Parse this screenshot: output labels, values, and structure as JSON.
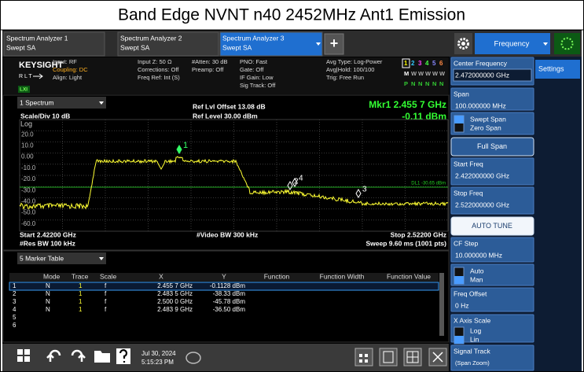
{
  "title": "Band Edge NVNT n40 2452MHz Ant1 Emission",
  "tabs": [
    {
      "name": "Spectrum Analyzer 1",
      "mode": "Swept SA"
    },
    {
      "name": "Spectrum Analyzer 2",
      "mode": "Swept SA"
    },
    {
      "name": "Spectrum Analyzer 3",
      "mode": "Swept SA"
    }
  ],
  "add_tab": "+",
  "menu": "Frequency",
  "settings_tab": "Settings",
  "status": {
    "brand": "KEYSIGHT",
    "rlt": "RLT",
    "lxi": "LXI",
    "col1": [
      "Input: RF",
      "Coupling: DC",
      "Align: Light"
    ],
    "col2": [
      "Input Z: 50 Ω",
      "Corrections: Off",
      "Freq Ref: Int (S)"
    ],
    "col3": [
      "#Atten: 30 dB",
      "Preamp: Off"
    ],
    "col4": [
      "PNO: Fast",
      "Gate: Off",
      "IF Gain: Low",
      "Sig Track: Off"
    ],
    "col5": [
      "Avg Type: Log-Power",
      "Avg|Hold: 100/100",
      "Trig: Free Run"
    ],
    "traces": [
      "1",
      "2",
      "3",
      "4",
      "5",
      "6"
    ],
    "trace_types": [
      "M",
      "W",
      "W",
      "W",
      "W",
      "W"
    ],
    "detectors": [
      "P",
      "N",
      "N",
      "N",
      "N",
      "N"
    ]
  },
  "spectrum": {
    "window": "1 Spectrum",
    "scale": "Scale/Div 10 dB",
    "scale_type": "Log",
    "ref_offset": "Ref Lvl Offset 13.08 dB",
    "ref_level": "Ref Level 30.00 dBm",
    "marker_freq": "Mkr1  2.455 7 GHz",
    "marker_level": "-0.11 dBm",
    "y_labels": [
      "20.0",
      "10.0",
      "0.00",
      "-10.0",
      "-20.0",
      "-30.0",
      "-40.0",
      "-50.0",
      "-60.0"
    ],
    "display_line": "DL1 -30.65 dBm",
    "marker_labels": [
      "1",
      "2",
      "3",
      "4"
    ],
    "start": "Start 2.42200 GHz",
    "res_bw": "#Res BW 100 kHz",
    "video_bw": "#Video BW 300 kHz",
    "stop": "Stop 2.52200 GHz",
    "sweep": "Sweep 9.60 ms (1001 pts)"
  },
  "marker_table": {
    "window": "5 Marker Table",
    "columns": [
      "Mode",
      "Trace",
      "Scale",
      "X",
      "Y",
      "Function",
      "Function Width",
      "Function Value"
    ],
    "rows": [
      [
        "1",
        "N",
        "1",
        "f",
        "2.455 7 GHz",
        "-0.1128 dBm"
      ],
      [
        "2",
        "N",
        "1",
        "f",
        "2.483 5 GHz",
        "-38.33 dBm"
      ],
      [
        "3",
        "N",
        "1",
        "f",
        "2.500 0 GHz",
        "-45.78 dBm"
      ],
      [
        "4",
        "N",
        "1",
        "f",
        "2.483 9 GHz",
        "-36.50 dBm"
      ],
      [
        "5"
      ],
      [
        "6"
      ]
    ]
  },
  "taskbar": {
    "date": "Jul 30, 2024",
    "time": "5:15:23 PM"
  },
  "panel": [
    {
      "label": "Center Frequency",
      "value": "2.472000000 GHz"
    },
    {
      "label": "Span",
      "value": "100.000000 MHz"
    },
    {
      "options": [
        "Swept Span",
        "Zero Span"
      ]
    },
    {
      "button": "Full Span"
    },
    {
      "label": "Start Freq",
      "value": "2.422000000 GHz"
    },
    {
      "label": "Stop Freq",
      "value": "2.522000000 GHz"
    },
    {
      "button": "AUTO TUNE"
    },
    {
      "label": "CF Step",
      "value": "10.000000 MHz"
    },
    {
      "options": [
        "Auto",
        "Man"
      ]
    },
    {
      "label": "Freq Offset",
      "value": "0 Hz"
    },
    {
      "label": "X Axis Scale",
      "options": [
        "Log",
        "Lin"
      ]
    },
    {
      "label": "Signal Track",
      "value": "(Span Zoom)"
    }
  ]
}
